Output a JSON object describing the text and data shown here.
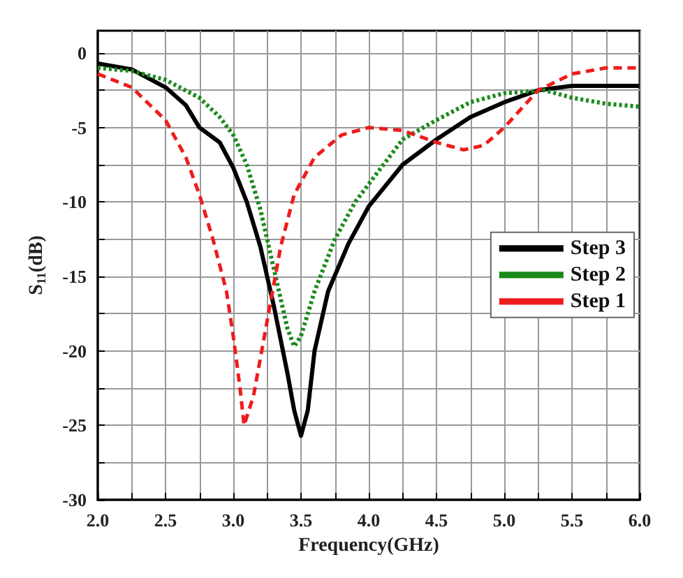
{
  "chart_data": {
    "type": "line",
    "xlabel": "Frequency(GHz)",
    "ylabel": "S$_{11}$(dB)",
    "xlim": [
      2.0,
      6.0
    ],
    "ylim": [
      -30,
      1.5
    ],
    "xticks": [
      "2.0",
      {
        "value": 2.25,
        "label": null
      },
      {
        "value": 2.5,
        "label": "2.5"
      },
      {
        "value": 2.75,
        "label": null
      },
      {
        "value": 3.0,
        "label": "3.0"
      },
      {
        "value": 3.25,
        "label": null
      },
      {
        "value": 3.5,
        "label": "3.5"
      },
      {
        "value": 3.75,
        "label": null
      },
      {
        "value": 4.0,
        "label": "4.0"
      },
      {
        "value": 4.25,
        "label": null
      },
      {
        "value": 4.5,
        "label": "4.5"
      },
      {
        "value": 4.75,
        "label": null
      },
      {
        "value": 5.0,
        "label": "5.0"
      },
      {
        "value": 5.25,
        "label": null
      },
      {
        "value": 5.5,
        "label": "5.5"
      },
      {
        "value": 5.75,
        "label": null
      },
      {
        "value": 6.0,
        "label": "6.0"
      }
    ],
    "yticks": [
      -30,
      {
        "value": -27.5,
        "label": null
      },
      -25,
      {
        "value": -22.5,
        "label": null
      },
      -20,
      {
        "value": -17.5,
        "label": null
      },
      -15,
      {
        "value": -12.5,
        "label": null
      },
      -10,
      {
        "value": -7.5,
        "label": null
      },
      -5,
      {
        "value": -2.5,
        "label": null
      },
      0
    ],
    "grid": true,
    "legend": "right",
    "marker": "none",
    "series": [
      {
        "name": "Step 3",
        "color": "#000000",
        "line_style": "solid",
        "x": [
          2.0,
          2.25,
          2.5,
          2.65,
          2.75,
          2.9,
          3.0,
          3.1,
          3.2,
          3.3,
          3.4,
          3.45,
          3.5,
          3.55,
          3.6,
          3.7,
          3.85,
          4.0,
          4.25,
          4.5,
          4.75,
          5.0,
          5.25,
          5.5,
          6.0
        ],
        "values": [
          -0.7,
          -1.1,
          -2.3,
          -3.5,
          -5.0,
          -6.0,
          -7.7,
          -10,
          -13,
          -17,
          -21.5,
          -24,
          -25.7,
          -24,
          -20,
          -16,
          -12.8,
          -10.3,
          -7.5,
          -5.8,
          -4.3,
          -3.3,
          -2.5,
          -2.2,
          -2.2
        ]
      },
      {
        "name": "Step 2",
        "color": "#1a8a1a",
        "line_style": "dotted",
        "x": [
          2.0,
          2.25,
          2.5,
          2.75,
          2.9,
          3.0,
          3.1,
          3.2,
          3.3,
          3.4,
          3.45,
          3.5,
          3.6,
          3.75,
          3.9,
          4.0,
          4.25,
          4.5,
          4.75,
          5.0,
          5.3,
          5.5,
          5.75,
          6.0
        ],
        "values": [
          -1.0,
          -1.2,
          -1.8,
          -3.0,
          -4.3,
          -5.5,
          -7.5,
          -10.5,
          -14.5,
          -18.5,
          -19.7,
          -19,
          -16,
          -12.5,
          -10,
          -8.8,
          -5.8,
          -4.5,
          -3.3,
          -2.7,
          -2.5,
          -3.0,
          -3.4,
          -3.6
        ]
      },
      {
        "name": "Step 1",
        "color": "#ee1c1c",
        "line_style": "dashed",
        "x": [
          2.0,
          2.25,
          2.5,
          2.65,
          2.75,
          2.85,
          2.95,
          3.0,
          3.05,
          3.08,
          3.15,
          3.25,
          3.35,
          3.45,
          3.6,
          3.8,
          4.0,
          4.25,
          4.5,
          4.7,
          4.85,
          5.0,
          5.25,
          5.5,
          5.75,
          6.0
        ],
        "values": [
          -1.4,
          -2.3,
          -4.5,
          -7,
          -9.5,
          -12.5,
          -16,
          -19,
          -22.5,
          -25,
          -23,
          -18,
          -13,
          -9.5,
          -7,
          -5.5,
          -5,
          -5.2,
          -6,
          -6.5,
          -6.2,
          -5,
          -2.5,
          -1.4,
          -1.0,
          -1.0
        ]
      }
    ]
  }
}
